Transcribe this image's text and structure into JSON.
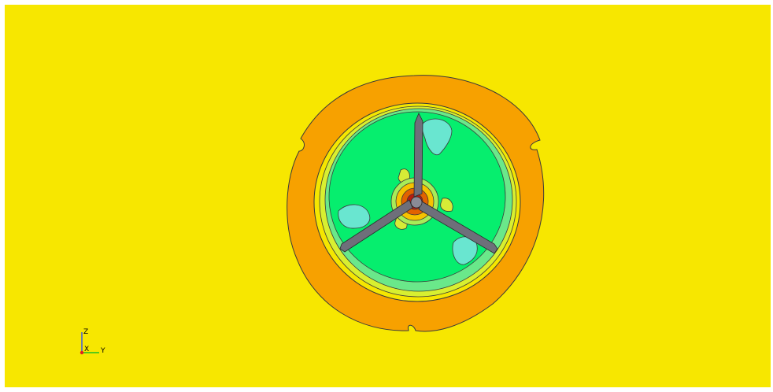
{
  "colors": {
    "background": "#ffffff",
    "field_far": "#f7e700",
    "ring": "#f7a100",
    "ring_inner_yellow": "#e7f018",
    "rotor_inner": "#6ae88a",
    "rotor_core": "#06ee6e",
    "low_region": "#69e6d0",
    "hub_warm": "#f6c200",
    "hub_hot": "#e26200",
    "hub_max": "#b81c10",
    "blade": "#6e6f7a",
    "contour_line": "#3a3a3a"
  },
  "triad": {
    "z_label": "Z",
    "x_label": "X",
    "y_label": "Y",
    "z_color": "#3050f0",
    "x_color": "#e02020",
    "y_color": "#20c020"
  }
}
